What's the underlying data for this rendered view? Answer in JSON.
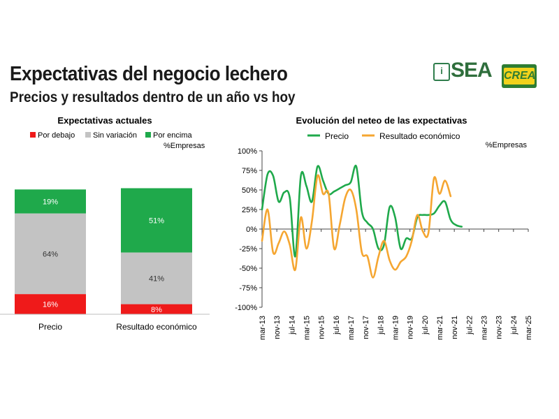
{
  "header": {
    "title": "Expectativas del negocio lechero",
    "subtitle": "Precios y resultados dentro de un año vs hoy"
  },
  "logos": {
    "sea": "SEA",
    "sea_icon": "i",
    "crea": "CREA"
  },
  "colors": {
    "green": "#1fa94b",
    "grey": "#c3c3c3",
    "red": "#ef1a1a",
    "orange": "#f5a631"
  },
  "chart_data": [
    {
      "type": "bar",
      "stacked": true,
      "title": "Expectativas actuales",
      "unit_label": "%Empresas",
      "categories": [
        "Precio",
        "Resultado económico"
      ],
      "legend": [
        "Por debajo",
        "Sin variación",
        "Por encima"
      ],
      "series": [
        {
          "name": "Por debajo",
          "values": [
            16,
            8
          ],
          "labels": [
            "16%",
            "8%"
          ]
        },
        {
          "name": "Sin variación",
          "values": [
            64,
            41
          ],
          "labels": [
            "64%",
            "41%"
          ]
        },
        {
          "name": "Por encima",
          "values": [
            19,
            51
          ],
          "labels": [
            "19%",
            "51%"
          ]
        }
      ]
    },
    {
      "type": "line",
      "title": "Evolución del neteo de las expectativas",
      "unit_label": "%Empresas",
      "ylim": [
        -100,
        100
      ],
      "yticks": [
        -100,
        -75,
        -50,
        -25,
        0,
        25,
        50,
        75,
        100
      ],
      "ytick_labels": [
        "-100%",
        "-75%",
        "-50%",
        "-25%",
        "0%",
        "25%",
        "50%",
        "75%",
        "100%"
      ],
      "xlim": [
        0,
        48
      ],
      "xtick_labels": [
        "mar-13",
        "nov-13",
        "jul-14",
        "mar-15",
        "nov-15",
        "jul-16",
        "mar-17",
        "nov-17",
        "jul-18",
        "mar-19",
        "nov-19",
        "jul-20",
        "mar-21",
        "nov-21",
        "jul-22",
        "mar-23",
        "nov-23",
        "jul-24",
        "mar-25"
      ],
      "legend": [
        "Precio",
        "Resultado económico"
      ],
      "series": [
        {
          "name": "Precio",
          "x": [
            0,
            1,
            2,
            3,
            4,
            5,
            6,
            7,
            8,
            9,
            10,
            11,
            12,
            13,
            14,
            15,
            16,
            17,
            18,
            19,
            20,
            21,
            22,
            23,
            24,
            25,
            26,
            27,
            28,
            29,
            30,
            31,
            32,
            33,
            34,
            35,
            36,
            37,
            38,
            39,
            40,
            41,
            42,
            43,
            44,
            45,
            46,
            47,
            48
          ],
          "values": [
            25,
            70,
            68,
            35,
            47,
            40,
            -35,
            68,
            55,
            35,
            80,
            62,
            45,
            48,
            52,
            56,
            60,
            80,
            22,
            8,
            0,
            -25,
            -20,
            28,
            15,
            -25,
            -12,
            -12,
            15,
            18,
            18,
            20,
            30,
            35,
            12,
            5,
            3,
            null,
            null,
            null,
            null,
            null,
            null,
            null,
            null,
            null,
            null,
            null,
            null
          ]
        },
        {
          "name": "Resultado económico",
          "x": [
            0,
            1,
            2,
            3,
            4,
            5,
            6,
            7,
            8,
            9,
            10,
            11,
            12,
            13,
            14,
            15,
            16,
            17,
            18,
            19,
            20,
            21,
            22,
            23,
            24,
            25,
            26,
            27,
            28,
            29,
            30,
            31,
            32,
            33,
            34,
            35,
            36,
            37,
            38,
            39,
            40,
            41,
            42,
            43,
            44,
            45,
            46,
            47,
            48
          ],
          "values": [
            -15,
            25,
            -30,
            -18,
            -3,
            -20,
            -52,
            15,
            -25,
            10,
            68,
            45,
            45,
            -25,
            5,
            40,
            50,
            25,
            -30,
            -35,
            -62,
            -35,
            -15,
            -40,
            -52,
            -42,
            -35,
            -15,
            18,
            -3,
            -5,
            65,
            45,
            62,
            42,
            null,
            null,
            null,
            null,
            null,
            null,
            null,
            null,
            null,
            null,
            null,
            null,
            null,
            null
          ]
        }
      ]
    }
  ]
}
